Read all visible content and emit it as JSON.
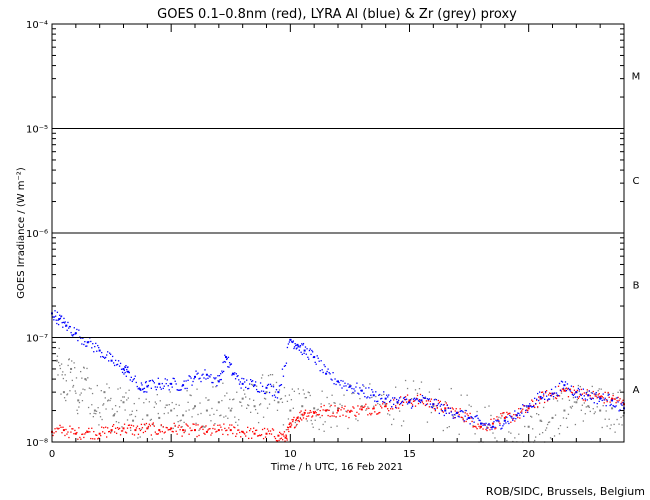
{
  "chart_data": {
    "type": "scatter",
    "title": "GOES 0.1–0.8nm (red), LYRA Al (blue) & Zr (grey) proxy",
    "xlabel": "Time / h UTC, 16 Feb 2021",
    "ylabel": "GOES Irradiance / (W m⁻²)",
    "xlim": [
      0,
      24
    ],
    "ylim": [
      1e-08,
      0.0001
    ],
    "yscale": "log",
    "x_ticks": [
      0,
      5,
      10,
      15,
      20
    ],
    "x_tick_labels": [
      "0",
      "5",
      "10",
      "15",
      "20"
    ],
    "y_ticks": [
      1e-08,
      1e-07,
      1e-06,
      1e-05,
      0.0001
    ],
    "y_tick_labels": [
      "10⁻⁸",
      "10⁻⁷",
      "10⁻⁶",
      "10⁻⁵",
      "10⁻⁴"
    ],
    "flare_class_lines": [
      1e-07,
      1e-06,
      1e-05
    ],
    "flare_classes": [
      {
        "label": "A",
        "y": 3.2e-08
      },
      {
        "label": "B",
        "y": 3.2e-07
      },
      {
        "label": "C",
        "y": 3.2e-06
      },
      {
        "label": "M",
        "y": 3.2e-05
      }
    ],
    "series": [
      {
        "color": "#ff0000",
        "points": [
          [
            0.0,
            1.25e-08
          ],
          [
            0.5,
            1.3e-08
          ],
          [
            1.0,
            1.2e-08
          ],
          [
            1.5,
            1.25e-08
          ],
          [
            2.0,
            1.2e-08
          ],
          [
            2.5,
            1.3e-08
          ],
          [
            3.0,
            1.35e-08
          ],
          [
            3.5,
            1.3e-08
          ],
          [
            4.0,
            1.35e-08
          ],
          [
            4.5,
            1.3e-08
          ],
          [
            5.0,
            1.35e-08
          ],
          [
            5.5,
            1.3e-08
          ],
          [
            6.0,
            1.3e-08
          ],
          [
            6.5,
            1.25e-08
          ],
          [
            7.0,
            1.3e-08
          ],
          [
            7.5,
            1.3e-08
          ],
          [
            8.0,
            1.25e-08
          ],
          [
            8.5,
            1.2e-08
          ],
          [
            9.0,
            1.2e-08
          ],
          [
            9.5,
            1.15e-08
          ],
          [
            9.8,
            1.1e-08
          ],
          [
            10.0,
            1.4e-08
          ],
          [
            10.3,
            1.7e-08
          ],
          [
            10.6,
            1.9e-08
          ],
          [
            11.0,
            1.9e-08
          ],
          [
            11.5,
            2e-08
          ],
          [
            12.0,
            2e-08
          ],
          [
            12.5,
            1.95e-08
          ],
          [
            13.0,
            2.05e-08
          ],
          [
            13.5,
            2.1e-08
          ],
          [
            14.0,
            2.2e-08
          ],
          [
            14.5,
            2.4e-08
          ],
          [
            15.0,
            2.5e-08
          ],
          [
            15.5,
            2.5e-08
          ],
          [
            16.0,
            2.3e-08
          ],
          [
            16.5,
            2.1e-08
          ],
          [
            17.0,
            1.9e-08
          ],
          [
            17.5,
            1.7e-08
          ],
          [
            18.0,
            1.4e-08
          ],
          [
            18.5,
            1.5e-08
          ],
          [
            19.0,
            1.7e-08
          ],
          [
            19.5,
            1.8e-08
          ],
          [
            20.0,
            2.1e-08
          ],
          [
            20.5,
            2.6e-08
          ],
          [
            21.0,
            2.9e-08
          ],
          [
            21.5,
            3.1e-08
          ],
          [
            22.0,
            3e-08
          ],
          [
            22.5,
            2.8e-08
          ],
          [
            23.0,
            2.7e-08
          ],
          [
            23.5,
            2.6e-08
          ],
          [
            24.0,
            2.3e-08
          ]
        ]
      },
      {
        "color": "#0000ff",
        "points": [
          [
            0.0,
            1.7e-07
          ],
          [
            0.3,
            1.5e-07
          ],
          [
            0.6,
            1.3e-07
          ],
          [
            1.0,
            1.1e-07
          ],
          [
            1.5,
            9e-08
          ],
          [
            2.0,
            7.5e-08
          ],
          [
            2.5,
            6e-08
          ],
          [
            3.0,
            5e-08
          ],
          [
            3.2,
            4.7e-08
          ],
          [
            3.7,
            3.2e-08
          ],
          [
            4.0,
            3.4e-08
          ],
          [
            4.5,
            3.6e-08
          ],
          [
            5.0,
            3.6e-08
          ],
          [
            5.5,
            3.5e-08
          ],
          [
            6.0,
            4.2e-08
          ],
          [
            6.5,
            4.4e-08
          ],
          [
            7.0,
            3.8e-08
          ],
          [
            7.3,
            6.5e-08
          ],
          [
            7.6,
            4.5e-08
          ],
          [
            8.0,
            3.6e-08
          ],
          [
            8.5,
            3.5e-08
          ],
          [
            9.0,
            3.3e-08
          ],
          [
            9.5,
            3e-08
          ],
          [
            10.0,
            9.5e-08
          ],
          [
            10.3,
            8.5e-08
          ],
          [
            10.6,
            7.5e-08
          ],
          [
            11.0,
            6.5e-08
          ],
          [
            11.5,
            4.5e-08
          ],
          [
            12.0,
            3.8e-08
          ],
          [
            12.5,
            3.4e-08
          ],
          [
            13.0,
            3.1e-08
          ],
          [
            13.5,
            2.8e-08
          ],
          [
            14.0,
            2.6e-08
          ],
          [
            14.5,
            2.4e-08
          ],
          [
            15.0,
            2.4e-08
          ],
          [
            15.5,
            2.5e-08
          ],
          [
            16.0,
            2.3e-08
          ],
          [
            16.5,
            2e-08
          ],
          [
            17.0,
            1.9e-08
          ],
          [
            17.5,
            1.7e-08
          ],
          [
            18.0,
            1.5e-08
          ],
          [
            18.5,
            1.4e-08
          ],
          [
            19.0,
            1.6e-08
          ],
          [
            19.5,
            1.8e-08
          ],
          [
            20.0,
            2.2e-08
          ],
          [
            20.5,
            2.7e-08
          ],
          [
            21.0,
            2.9e-08
          ],
          [
            21.5,
            3.5e-08
          ],
          [
            22.0,
            3e-08
          ],
          [
            22.5,
            2.8e-08
          ],
          [
            23.0,
            2.6e-08
          ],
          [
            23.5,
            2.5e-08
          ],
          [
            24.0,
            2.1e-08
          ]
        ]
      },
      {
        "color": "#808080",
        "points": [
          [
            0.2,
            6e-08
          ],
          [
            0.5,
            3e-08
          ],
          [
            0.8,
            5e-08
          ],
          [
            1.1,
            2.5e-08
          ],
          [
            1.4,
            4e-08
          ],
          [
            1.8,
            2e-08
          ],
          [
            2.2,
            3e-08
          ],
          [
            2.6,
            1.8e-08
          ],
          [
            3.0,
            2.4e-08
          ],
          [
            3.4,
            1.6e-08
          ],
          [
            4.0,
            1.8e-08
          ],
          [
            4.5,
            1.7e-08
          ],
          [
            5.0,
            2e-08
          ],
          [
            5.5,
            1.8e-08
          ],
          [
            6.0,
            2.2e-08
          ],
          [
            6.5,
            2e-08
          ],
          [
            7.0,
            2.4e-08
          ],
          [
            7.5,
            2e-08
          ],
          [
            8.0,
            2.6e-08
          ],
          [
            8.5,
            2.2e-08
          ],
          [
            9.0,
            3e-08
          ],
          [
            9.5,
            2.4e-08
          ],
          [
            10.0,
            2e-08
          ],
          [
            10.5,
            2.2e-08
          ],
          [
            11.0,
            2.1e-08
          ],
          [
            11.5,
            2e-08
          ],
          [
            12.0,
            2.1e-08
          ],
          [
            13.0,
            2.2e-08
          ],
          [
            14.0,
            2.3e-08
          ],
          [
            15.0,
            2.4e-08
          ],
          [
            16.0,
            2.2e-08
          ],
          [
            17.0,
            1.9e-08
          ],
          [
            18.0,
            1.5e-08
          ],
          [
            19.0,
            1.6e-08
          ],
          [
            20.0,
            1.4e-08
          ],
          [
            20.5,
            1.6e-08
          ],
          [
            21.0,
            1.7e-08
          ],
          [
            21.5,
            2e-08
          ],
          [
            22.0,
            2.4e-08
          ],
          [
            22.5,
            2.2e-08
          ],
          [
            23.0,
            2e-08
          ],
          [
            23.5,
            2.1e-08
          ],
          [
            24.0,
            1.9e-08
          ]
        ]
      }
    ]
  },
  "credit": "ROB/SIDC, Brussels, Belgium"
}
